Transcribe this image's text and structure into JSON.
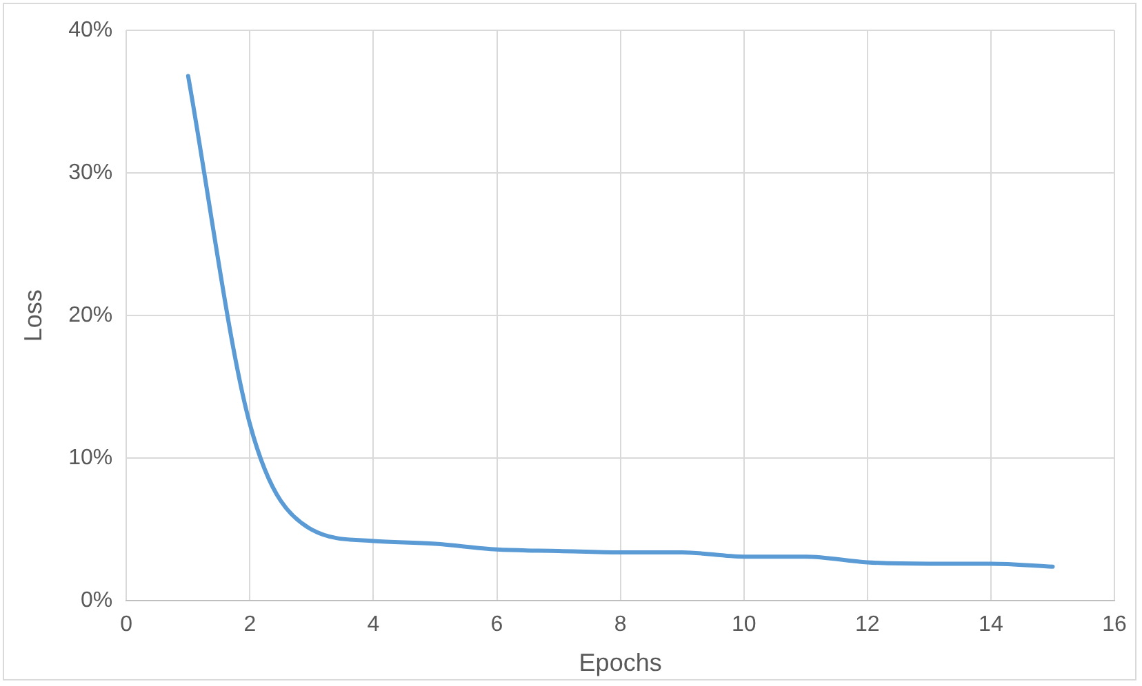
{
  "chart_data": {
    "type": "line",
    "xlabel": "Epochs",
    "ylabel": "Loss",
    "x": [
      1,
      2,
      3,
      4,
      5,
      6,
      7,
      8,
      9,
      10,
      11,
      12,
      13,
      14,
      15
    ],
    "series": [
      {
        "color": "#5b9bd5",
        "values": [
          36.8,
          12.4,
          5.0,
          4.2,
          4.0,
          3.6,
          3.5,
          3.4,
          3.4,
          3.1,
          3.1,
          2.7,
          2.6,
          2.6,
          2.4
        ]
      }
    ],
    "xlim": [
      0,
      16
    ],
    "xticks": [
      0,
      2,
      4,
      6,
      8,
      10,
      12,
      14,
      16
    ],
    "ylim": [
      0,
      40
    ],
    "yticks": [
      {
        "value": 0,
        "label": "0%"
      },
      {
        "value": 10,
        "label": "10%"
      },
      {
        "value": 20,
        "label": "20%"
      },
      {
        "value": 30,
        "label": "30%"
      },
      {
        "value": 40,
        "label": "40%"
      }
    ],
    "grid": true,
    "legend": false,
    "marker": "none",
    "line_style": "solid"
  }
}
